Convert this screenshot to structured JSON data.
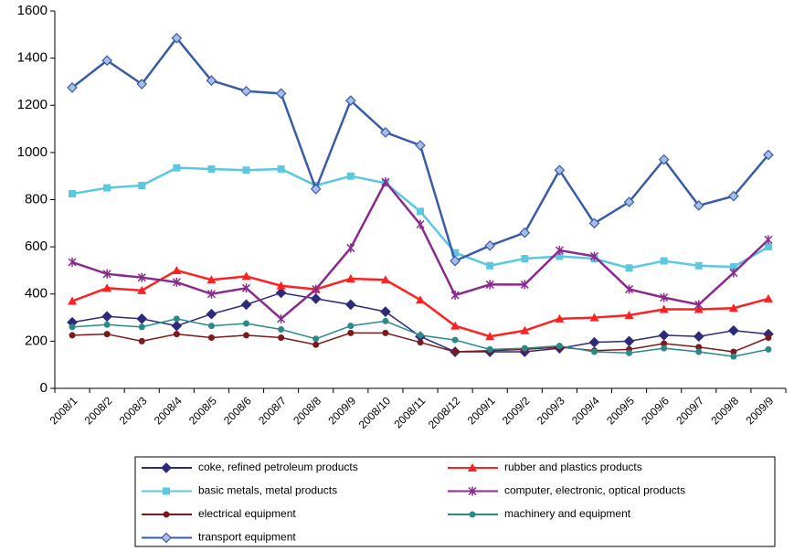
{
  "chart_data": {
    "type": "line",
    "categories": [
      "2008/1",
      "2008/2",
      "2008/3",
      "2008/4",
      "2008/5",
      "2008/6",
      "2008/7",
      "2008/8",
      "2009/9",
      "2008/10",
      "2008/11",
      "2008/12",
      "2009/1",
      "2009/2",
      "2009/3",
      "2009/4",
      "2009/5",
      "2009/6",
      "2009/7",
      "2009/8",
      "2009/9"
    ],
    "ylim": [
      0,
      1600
    ],
    "yticks": [
      0,
      200,
      400,
      600,
      800,
      1000,
      1200,
      1400,
      1600
    ],
    "series": [
      {
        "name": "coke, refined petroleum products",
        "color": "#2e2a7a",
        "marker": "diamond",
        "values": [
          280,
          305,
          295,
          265,
          315,
          355,
          405,
          380,
          355,
          325,
          220,
          155,
          155,
          155,
          170,
          195,
          200,
          225,
          220,
          245,
          230
        ]
      },
      {
        "name": "rubber and plastics products",
        "color": "#ff2020",
        "marker": "triangle",
        "values": [
          370,
          425,
          415,
          500,
          460,
          475,
          435,
          420,
          465,
          460,
          375,
          265,
          220,
          245,
          295,
          300,
          310,
          335,
          335,
          340,
          380
        ]
      },
      {
        "name": "basic metals, metal products",
        "color": "#5bc8e0",
        "marker": "square",
        "values": [
          825,
          850,
          860,
          935,
          930,
          925,
          930,
          860,
          900,
          870,
          750,
          575,
          520,
          550,
          560,
          550,
          510,
          540,
          520,
          515,
          600
        ]
      },
      {
        "name": "computer, electronic, optical products",
        "color": "#8b2a8e",
        "marker": "star",
        "values": [
          535,
          485,
          470,
          450,
          400,
          425,
          295,
          420,
          595,
          875,
          695,
          395,
          440,
          440,
          585,
          560,
          420,
          385,
          355,
          490,
          630
        ]
      },
      {
        "name": "electrical equipment",
        "color": "#7a1a1a",
        "marker": "circle",
        "values": [
          225,
          230,
          200,
          230,
          215,
          225,
          215,
          185,
          235,
          235,
          195,
          155,
          160,
          165,
          175,
          160,
          165,
          190,
          175,
          155,
          215
        ]
      },
      {
        "name": "machinery and equipment",
        "color": "#2a8a8a",
        "marker": "circle",
        "values": [
          260,
          270,
          260,
          295,
          265,
          275,
          250,
          210,
          265,
          285,
          225,
          205,
          165,
          170,
          180,
          155,
          150,
          170,
          155,
          135,
          165
        ]
      },
      {
        "name": "transport equipment",
        "color": "#3a5ca8",
        "marker": "diamond",
        "values": [
          1275,
          1390,
          1290,
          1485,
          1305,
          1260,
          1250,
          845,
          1220,
          1085,
          1030,
          540,
          605,
          660,
          925,
          700,
          790,
          970,
          775,
          815,
          990
        ]
      }
    ]
  }
}
